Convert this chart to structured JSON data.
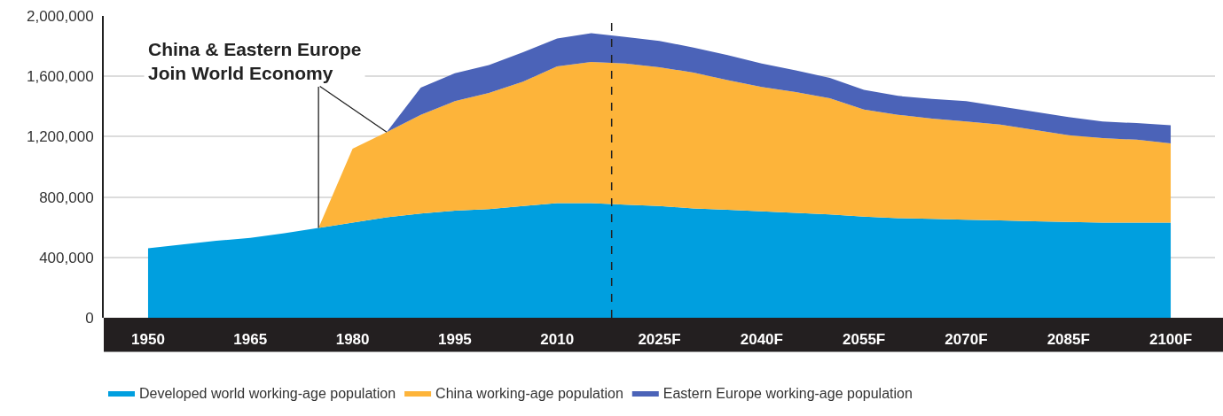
{
  "chart_data": {
    "type": "area",
    "stacked": true,
    "x": [
      1950,
      1955,
      1960,
      1965,
      1970,
      1975,
      1980,
      1985,
      1990,
      1995,
      2000,
      2005,
      2010,
      2015,
      2020,
      2025,
      2030,
      2035,
      2040,
      2045,
      2050,
      2055,
      2060,
      2065,
      2070,
      2075,
      2080,
      2085,
      2090,
      2095,
      2100
    ],
    "xlim": [
      1943.5,
      2106.5
    ],
    "xticks": [
      1950,
      1965,
      1980,
      1995,
      2010,
      {
        "value": 2025,
        "label": "2025F"
      },
      {
        "value": 2040,
        "label": "2040F"
      },
      {
        "value": 2055,
        "label": "2055F"
      },
      {
        "value": 2070,
        "label": "2070F"
      },
      {
        "value": 2085,
        "label": "2085F"
      },
      {
        "value": 2100,
        "label": "2100F"
      }
    ],
    "ylim": [
      0,
      2000000
    ],
    "yticks": [
      0,
      {
        "value": 400000,
        "label": "400,000"
      },
      {
        "value": 800000,
        "label": "800,000"
      },
      {
        "value": 1200000,
        "label": "1,200,000"
      },
      {
        "value": 1600000,
        "label": "1,600,000"
      },
      {
        "value": 2000000,
        "label": "2,000,000"
      }
    ],
    "series": [
      {
        "name": "Developed world working-age population",
        "color": "#009fdf",
        "values": [
          460000,
          485000,
          510000,
          530000,
          560000,
          595000,
          630000,
          665000,
          690000,
          710000,
          720000,
          740000,
          760000,
          760000,
          750000,
          740000,
          725000,
          715000,
          705000,
          695000,
          685000,
          670000,
          660000,
          655000,
          650000,
          645000,
          640000,
          635000,
          630000,
          630000,
          630000
        ]
      },
      {
        "name": "China working-age population",
        "color": "#fdb43a",
        "values": [
          0,
          0,
          0,
          0,
          0,
          0,
          490000,
          565000,
          655000,
          725000,
          770000,
          825000,
          905000,
          935000,
          935000,
          920000,
          900000,
          860000,
          825000,
          800000,
          770000,
          710000,
          685000,
          665000,
          650000,
          635000,
          605000,
          575000,
          560000,
          550000,
          525000
        ]
      },
      {
        "name": "Eastern Europe working-age population",
        "color": "#4b63b8",
        "values": [
          0,
          0,
          0,
          0,
          0,
          0,
          0,
          0,
          180000,
          185000,
          185000,
          195000,
          185000,
          190000,
          175000,
          175000,
          165000,
          165000,
          155000,
          145000,
          135000,
          130000,
          125000,
          130000,
          135000,
          120000,
          120000,
          120000,
          110000,
          110000,
          120000
        ]
      }
    ],
    "ref_lines": [
      {
        "axis": "x",
        "value": 2018,
        "color": "#222222",
        "line_style": "dashed"
      }
    ],
    "annotations": [
      {
        "text": "China & Eastern Europe\nJoin World Economy",
        "x": 1975,
        "y": 595000
      }
    ],
    "grid": "y",
    "legend": "bottom"
  }
}
